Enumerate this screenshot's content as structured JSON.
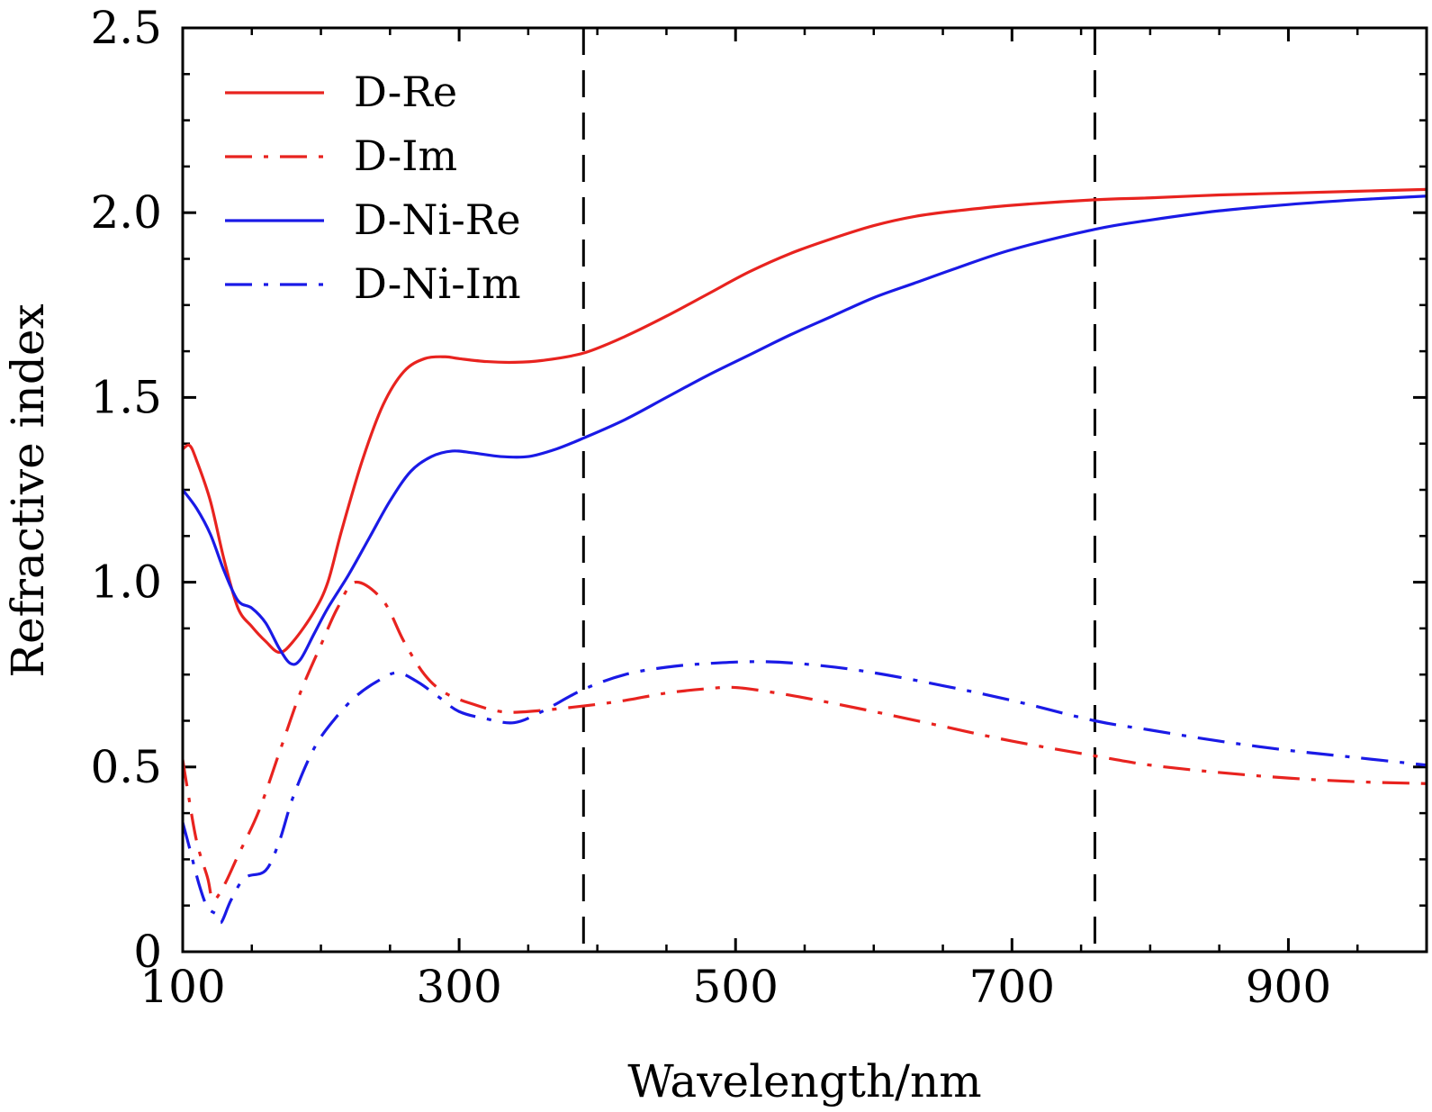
{
  "chart_data": {
    "type": "line",
    "title": "",
    "xlabel": "Wavelength/nm",
    "ylabel": "Refractive index",
    "xlim": [
      100,
      1000
    ],
    "ylim": [
      0,
      2.5
    ],
    "x_ticks": [
      100,
      300,
      500,
      700,
      900
    ],
    "x_tick_labels": [
      "100",
      "300",
      "500",
      "700",
      "900"
    ],
    "y_ticks": [
      0,
      0.5,
      1.0,
      1.5,
      2.0,
      2.5
    ],
    "y_tick_labels": [
      "0",
      "0.5",
      "1.0",
      "1.5",
      "2.0",
      "2.5"
    ],
    "x_minor_step": 50,
    "y_minor_step": 0.125,
    "grid": false,
    "legend_position": "top-left",
    "vertical_reference_lines": [
      390,
      760
    ],
    "series": [
      {
        "name": "D-Re",
        "color": "#e8231f",
        "dash": "solid",
        "points": [
          [
            100,
            1.36
          ],
          [
            105,
            1.37
          ],
          [
            110,
            1.33
          ],
          [
            120,
            1.22
          ],
          [
            130,
            1.06
          ],
          [
            140,
            0.93
          ],
          [
            150,
            0.88
          ],
          [
            160,
            0.84
          ],
          [
            170,
            0.81
          ],
          [
            180,
            0.84
          ],
          [
            195,
            0.92
          ],
          [
            205,
            1.0
          ],
          [
            215,
            1.14
          ],
          [
            230,
            1.33
          ],
          [
            245,
            1.48
          ],
          [
            260,
            1.57
          ],
          [
            275,
            1.605
          ],
          [
            290,
            1.61
          ],
          [
            300,
            1.605
          ],
          [
            320,
            1.597
          ],
          [
            340,
            1.595
          ],
          [
            360,
            1.6
          ],
          [
            390,
            1.62
          ],
          [
            420,
            1.665
          ],
          [
            450,
            1.72
          ],
          [
            480,
            1.78
          ],
          [
            510,
            1.84
          ],
          [
            540,
            1.89
          ],
          [
            570,
            1.93
          ],
          [
            600,
            1.965
          ],
          [
            630,
            1.99
          ],
          [
            660,
            2.005
          ],
          [
            700,
            2.02
          ],
          [
            760,
            2.035
          ],
          [
            800,
            2.04
          ],
          [
            850,
            2.048
          ],
          [
            900,
            2.053
          ],
          [
            950,
            2.058
          ],
          [
            1000,
            2.063
          ]
        ]
      },
      {
        "name": "D-Im",
        "color": "#e8231f",
        "dash": "dashdot",
        "points": [
          [
            100,
            0.52
          ],
          [
            103,
            0.45
          ],
          [
            110,
            0.3
          ],
          [
            118,
            0.2
          ],
          [
            122,
            0.14
          ],
          [
            130,
            0.18
          ],
          [
            140,
            0.26
          ],
          [
            155,
            0.38
          ],
          [
            170,
            0.54
          ],
          [
            185,
            0.7
          ],
          [
            200,
            0.83
          ],
          [
            212,
            0.93
          ],
          [
            225,
            1.0
          ],
          [
            245,
            0.95
          ],
          [
            260,
            0.84
          ],
          [
            275,
            0.75
          ],
          [
            290,
            0.7
          ],
          [
            310,
            0.67
          ],
          [
            330,
            0.65
          ],
          [
            350,
            0.65
          ],
          [
            390,
            0.665
          ],
          [
            420,
            0.68
          ],
          [
            450,
            0.7
          ],
          [
            480,
            0.712
          ],
          [
            500,
            0.715
          ],
          [
            530,
            0.7
          ],
          [
            560,
            0.68
          ],
          [
            600,
            0.65
          ],
          [
            650,
            0.61
          ],
          [
            700,
            0.57
          ],
          [
            760,
            0.53
          ],
          [
            800,
            0.505
          ],
          [
            850,
            0.485
          ],
          [
            900,
            0.47
          ],
          [
            950,
            0.46
          ],
          [
            1000,
            0.455
          ]
        ]
      },
      {
        "name": "D-Ni-Re",
        "color": "#1a1ae6",
        "dash": "solid",
        "points": [
          [
            100,
            1.25
          ],
          [
            110,
            1.2
          ],
          [
            120,
            1.13
          ],
          [
            130,
            1.03
          ],
          [
            140,
            0.95
          ],
          [
            150,
            0.93
          ],
          [
            160,
            0.89
          ],
          [
            170,
            0.82
          ],
          [
            178,
            0.78
          ],
          [
            185,
            0.79
          ],
          [
            195,
            0.86
          ],
          [
            205,
            0.93
          ],
          [
            220,
            1.02
          ],
          [
            235,
            1.12
          ],
          [
            250,
            1.22
          ],
          [
            265,
            1.3
          ],
          [
            280,
            1.34
          ],
          [
            295,
            1.355
          ],
          [
            310,
            1.35
          ],
          [
            330,
            1.34
          ],
          [
            350,
            1.34
          ],
          [
            370,
            1.36
          ],
          [
            390,
            1.39
          ],
          [
            420,
            1.44
          ],
          [
            450,
            1.5
          ],
          [
            480,
            1.56
          ],
          [
            510,
            1.615
          ],
          [
            540,
            1.67
          ],
          [
            570,
            1.72
          ],
          [
            600,
            1.77
          ],
          [
            630,
            1.81
          ],
          [
            660,
            1.85
          ],
          [
            700,
            1.9
          ],
          [
            760,
            1.955
          ],
          [
            800,
            1.98
          ],
          [
            850,
            2.005
          ],
          [
            900,
            2.022
          ],
          [
            950,
            2.035
          ],
          [
            1000,
            2.045
          ]
        ]
      },
      {
        "name": "D-Ni-Im",
        "color": "#1a1ae6",
        "dash": "dashdot",
        "points": [
          [
            100,
            0.35
          ],
          [
            105,
            0.28
          ],
          [
            112,
            0.18
          ],
          [
            118,
            0.12
          ],
          [
            125,
            0.1
          ],
          [
            128,
            0.08
          ],
          [
            135,
            0.14
          ],
          [
            145,
            0.2
          ],
          [
            160,
            0.22
          ],
          [
            170,
            0.3
          ],
          [
            180,
            0.42
          ],
          [
            195,
            0.55
          ],
          [
            210,
            0.63
          ],
          [
            225,
            0.69
          ],
          [
            240,
            0.73
          ],
          [
            255,
            0.755
          ],
          [
            270,
            0.73
          ],
          [
            285,
            0.69
          ],
          [
            300,
            0.65
          ],
          [
            320,
            0.63
          ],
          [
            340,
            0.62
          ],
          [
            360,
            0.65
          ],
          [
            390,
            0.71
          ],
          [
            420,
            0.75
          ],
          [
            450,
            0.77
          ],
          [
            480,
            0.78
          ],
          [
            520,
            0.785
          ],
          [
            560,
            0.775
          ],
          [
            600,
            0.755
          ],
          [
            650,
            0.72
          ],
          [
            700,
            0.68
          ],
          [
            760,
            0.625
          ],
          [
            800,
            0.6
          ],
          [
            850,
            0.57
          ],
          [
            900,
            0.545
          ],
          [
            950,
            0.525
          ],
          [
            1000,
            0.505
          ]
        ]
      }
    ]
  }
}
